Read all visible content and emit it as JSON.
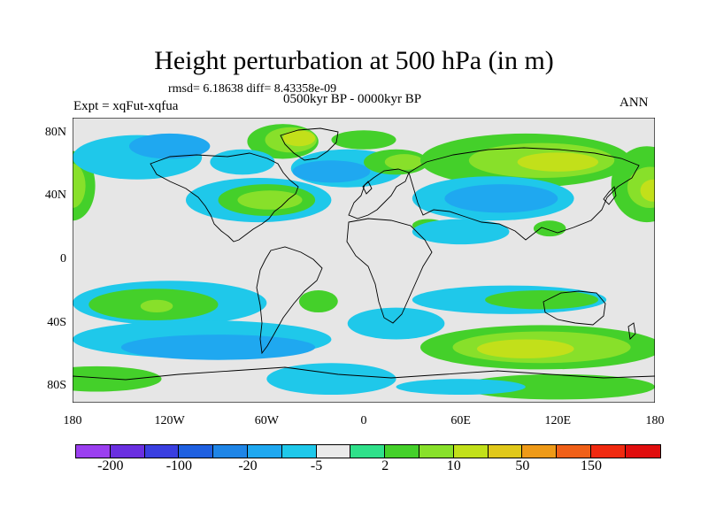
{
  "title": "Height perturbation at 500 hPa (in m)",
  "stats_text": "rmsd= 6.18638 diff= 8.43358e-09",
  "period_text": "0500kyr BP - 0000kyr BP",
  "expt_text": "Expt = xqFut-xqfua",
  "season_text": "ANN",
  "map": {
    "lon_range": [
      -180,
      180
    ],
    "lat_range": [
      -90,
      90
    ],
    "y_ticks": [
      {
        "lat": 80,
        "label": "80N"
      },
      {
        "lat": 40,
        "label": "40N"
      },
      {
        "lat": 0,
        "label": "0"
      },
      {
        "lat": -40,
        "label": "40S"
      },
      {
        "lat": -80,
        "label": "80S"
      }
    ],
    "x_ticks": [
      {
        "lon": -180,
        "label": "180"
      },
      {
        "lon": -120,
        "label": "120W"
      },
      {
        "lon": -60,
        "label": "60W"
      },
      {
        "lon": 0,
        "label": "0"
      },
      {
        "lon": 60,
        "label": "60E"
      },
      {
        "lon": 120,
        "label": "120E"
      },
      {
        "lon": 180,
        "label": "180"
      }
    ],
    "background_color": "#e6e6e6"
  },
  "colorbar": {
    "colors": [
      "#9b3ff0",
      "#6a2fe0",
      "#3a3fe0",
      "#1f60e0",
      "#1f85e6",
      "#1fa8f0",
      "#1fc8ea",
      "#eaeaea",
      "#2fe08a",
      "#44d02a",
      "#88e02a",
      "#c2e01a",
      "#e0c81a",
      "#ee9a18",
      "#f06018",
      "#f02a10",
      "#e00e0e"
    ],
    "labels": [
      {
        "index": 1,
        "text": "-200"
      },
      {
        "index": 3,
        "text": "-100"
      },
      {
        "index": 5,
        "text": "-20"
      },
      {
        "index": 7,
        "text": "-5"
      },
      {
        "index": 9,
        "text": "2"
      },
      {
        "index": 11,
        "text": "10"
      },
      {
        "index": 13,
        "text": "50"
      },
      {
        "index": 15,
        "text": "150"
      }
    ]
  },
  "fields": [
    {
      "lon": -180,
      "lat": 47,
      "rx": 14,
      "ry": 22,
      "level": "pos_small"
    },
    {
      "lon": -180,
      "lat": 47,
      "rx": 8,
      "ry": 14,
      "level": "pos_mid"
    },
    {
      "lon": -140,
      "lat": 65,
      "rx": 40,
      "ry": 14,
      "level": "neg_light"
    },
    {
      "lon": -120,
      "lat": 72,
      "rx": 25,
      "ry": 8,
      "level": "neg_mid"
    },
    {
      "lon": -50,
      "lat": 75,
      "rx": 22,
      "ry": 11,
      "level": "pos_small"
    },
    {
      "lon": -45,
      "lat": 76,
      "rx": 16,
      "ry": 8,
      "level": "pos_mid"
    },
    {
      "lon": -40,
      "lat": 77,
      "rx": 10,
      "ry": 5,
      "level": "pos_high"
    },
    {
      "lon": -75,
      "lat": 62,
      "rx": 20,
      "ry": 8,
      "level": "neg_light"
    },
    {
      "lon": -10,
      "lat": 58,
      "rx": 35,
      "ry": 12,
      "level": "neg_light"
    },
    {
      "lon": -20,
      "lat": 56,
      "rx": 24,
      "ry": 7,
      "level": "neg_mid"
    },
    {
      "lon": 0,
      "lat": 76,
      "rx": 20,
      "ry": 6,
      "level": "pos_small"
    },
    {
      "lon": 20,
      "lat": 62,
      "rx": 20,
      "ry": 8,
      "level": "pos_small"
    },
    {
      "lon": 25,
      "lat": 62,
      "rx": 12,
      "ry": 5,
      "level": "pos_mid"
    },
    {
      "lon": -65,
      "lat": 38,
      "rx": 45,
      "ry": 14,
      "level": "neg_light"
    },
    {
      "lon": -60,
      "lat": 38,
      "rx": 30,
      "ry": 10,
      "level": "pos_small"
    },
    {
      "lon": -58,
      "lat": 38,
      "rx": 20,
      "ry": 6,
      "level": "pos_mid"
    },
    {
      "lon": 100,
      "lat": 63,
      "rx": 65,
      "ry": 17,
      "level": "pos_small"
    },
    {
      "lon": 110,
      "lat": 63,
      "rx": 45,
      "ry": 11,
      "level": "pos_mid"
    },
    {
      "lon": 120,
      "lat": 62,
      "rx": 25,
      "ry": 6,
      "level": "pos_high"
    },
    {
      "lon": 80,
      "lat": 39,
      "rx": 50,
      "ry": 14,
      "level": "neg_light"
    },
    {
      "lon": 85,
      "lat": 39,
      "rx": 35,
      "ry": 9,
      "level": "neg_mid"
    },
    {
      "lon": 175,
      "lat": 48,
      "rx": 22,
      "ry": 24,
      "level": "pos_small"
    },
    {
      "lon": 177,
      "lat": 46,
      "rx": 14,
      "ry": 13,
      "level": "pos_mid"
    },
    {
      "lon": 179,
      "lat": 44,
      "rx": 8,
      "ry": 7,
      "level": "pos_high"
    },
    {
      "lon": 40,
      "lat": 22,
      "rx": 10,
      "ry": 4,
      "level": "pos_small"
    },
    {
      "lon": 60,
      "lat": 18,
      "rx": 30,
      "ry": 8,
      "level": "neg_light"
    },
    {
      "lon": 115,
      "lat": 20,
      "rx": 10,
      "ry": 5,
      "level": "pos_small"
    },
    {
      "lon": -120,
      "lat": -27,
      "rx": 60,
      "ry": 14,
      "level": "neg_light"
    },
    {
      "lon": -130,
      "lat": -28,
      "rx": 40,
      "ry": 10,
      "level": "pos_small"
    },
    {
      "lon": -128,
      "lat": -29,
      "rx": 10,
      "ry": 4,
      "level": "pos_mid"
    },
    {
      "lon": -28,
      "lat": -26,
      "rx": 12,
      "ry": 7,
      "level": "pos_small"
    },
    {
      "lon": 90,
      "lat": -25,
      "rx": 60,
      "ry": 9,
      "level": "neg_light"
    },
    {
      "lon": 110,
      "lat": -25,
      "rx": 35,
      "ry": 6,
      "level": "pos_small"
    },
    {
      "lon": 20,
      "lat": -40,
      "rx": 30,
      "ry": 10,
      "level": "neg_light"
    },
    {
      "lon": -100,
      "lat": -50,
      "rx": 80,
      "ry": 12,
      "level": "neg_light"
    },
    {
      "lon": -90,
      "lat": -55,
      "rx": 60,
      "ry": 8,
      "level": "neg_mid"
    },
    {
      "lon": 110,
      "lat": -55,
      "rx": 75,
      "ry": 14,
      "level": "pos_small"
    },
    {
      "lon": 110,
      "lat": -55,
      "rx": 55,
      "ry": 10,
      "level": "pos_mid"
    },
    {
      "lon": 100,
      "lat": -56,
      "rx": 30,
      "ry": 6,
      "level": "pos_high"
    },
    {
      "lon": -165,
      "lat": -75,
      "rx": 40,
      "ry": 8,
      "level": "pos_small"
    },
    {
      "lon": -20,
      "lat": -75,
      "rx": 40,
      "ry": 10,
      "level": "neg_light"
    },
    {
      "lon": 120,
      "lat": -80,
      "rx": 60,
      "ry": 8,
      "level": "pos_small"
    },
    {
      "lon": 60,
      "lat": -80,
      "rx": 40,
      "ry": 5,
      "level": "neg_light"
    }
  ]
}
